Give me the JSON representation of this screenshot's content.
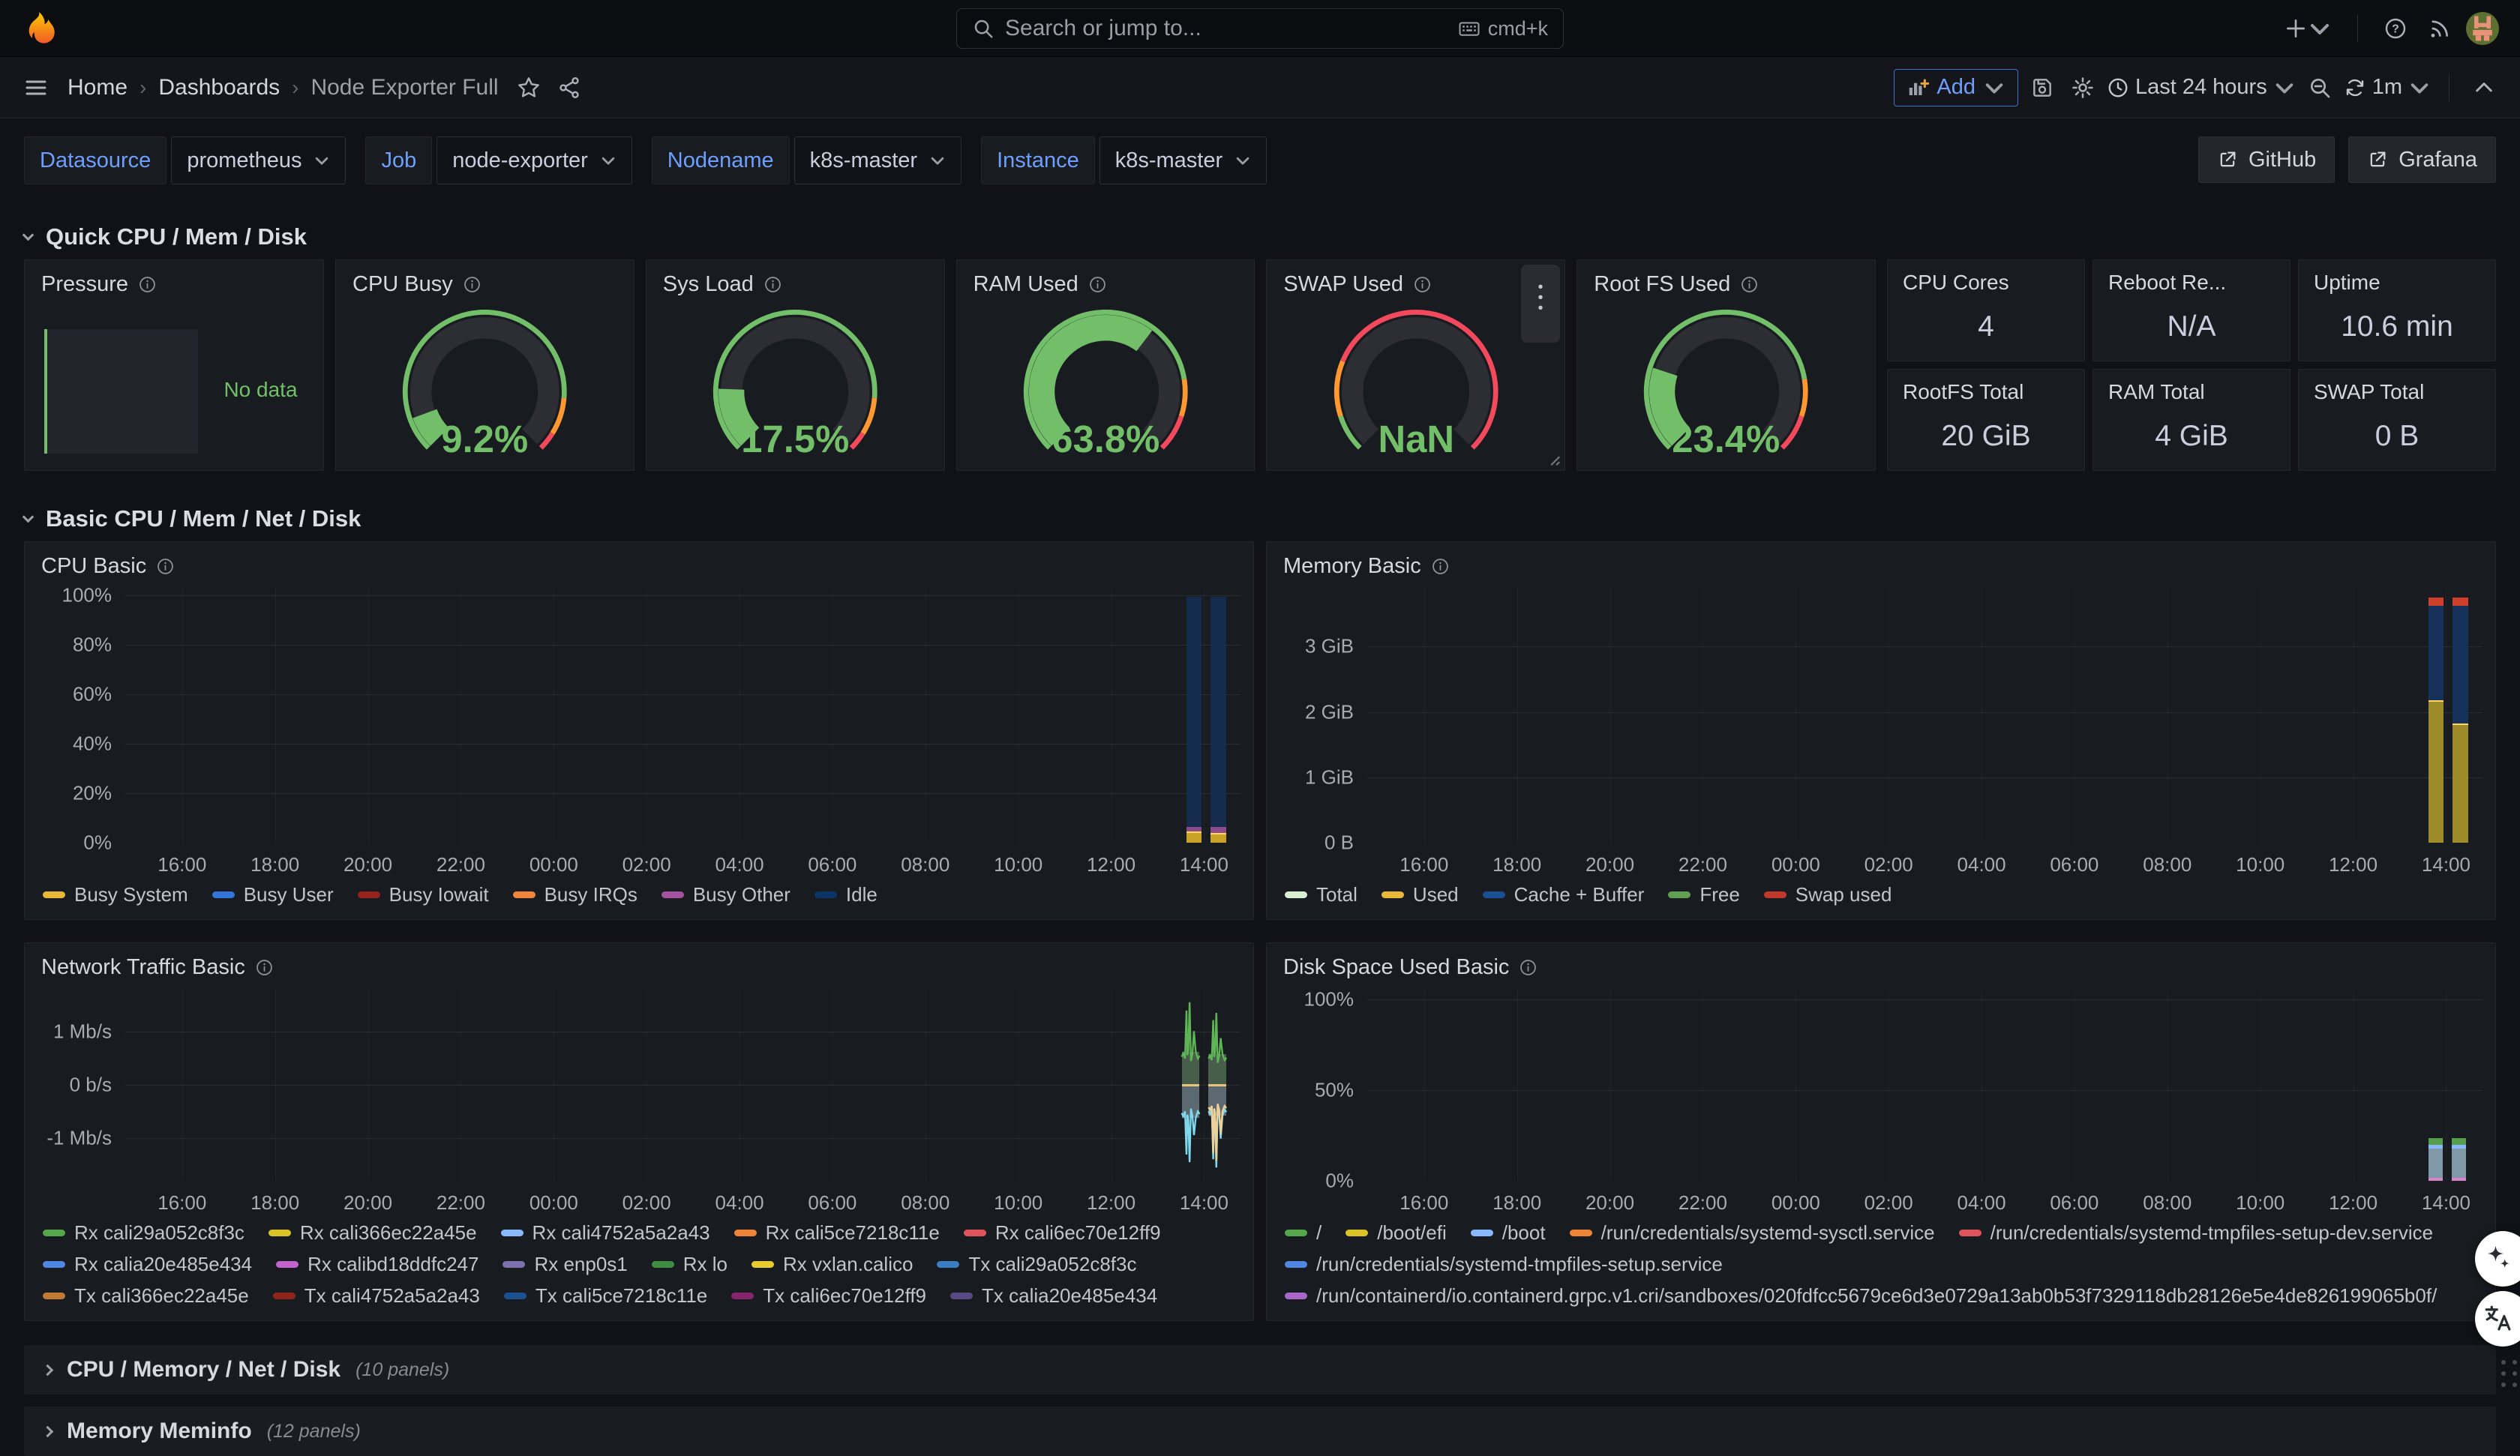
{
  "theme": {
    "page_bg": "#111217",
    "panel_bg": "#181b1f",
    "accent_blue": "#3d71d9",
    "link_blue": "#6e9fff",
    "green": "#73bf69",
    "orange": "#ff9830",
    "red": "#f2495c"
  },
  "topbar": {
    "search_placeholder": "Search or jump to...",
    "shortcut": "cmd+k"
  },
  "toolbar": {
    "breadcrumb": [
      "Home",
      "Dashboards",
      "Node Exporter Full"
    ],
    "add_label": "Add",
    "time_range": "Last 24 hours",
    "refresh_interval": "1m"
  },
  "variables": [
    {
      "label": "Datasource",
      "value": "prometheus"
    },
    {
      "label": "Job",
      "value": "node-exporter"
    },
    {
      "label": "Nodename",
      "value": "k8s-master"
    },
    {
      "label": "Instance",
      "value": "k8s-master"
    }
  ],
  "dash_links": [
    {
      "label": "GitHub"
    },
    {
      "label": "Grafana"
    }
  ],
  "rows": {
    "quick": "Quick CPU / Mem / Disk",
    "basic": "Basic CPU / Mem / Net / Disk",
    "collapsed": [
      {
        "title": "CPU / Memory / Net / Disk",
        "count": "(10 panels)"
      },
      {
        "title": "Memory Meminfo",
        "count": "(12 panels)"
      }
    ]
  },
  "pressure": {
    "title": "Pressure",
    "no_data": "No data"
  },
  "gauges": [
    {
      "title": "CPU Busy",
      "value": "9.2%",
      "pct": 9.2,
      "thresholds": [
        0.85,
        0.95
      ]
    },
    {
      "title": "Sys Load",
      "value": "17.5%",
      "pct": 17.5,
      "thresholds": [
        0.85,
        0.95
      ]
    },
    {
      "title": "RAM Used",
      "value": "63.8%",
      "pct": 63.8,
      "thresholds": [
        0.8,
        0.9
      ]
    },
    {
      "title": "SWAP Used",
      "value": "NaN",
      "pct": null,
      "thresholds": [
        0.1,
        0.25
      ],
      "menu": true
    },
    {
      "title": "Root FS Used",
      "value": "23.4%",
      "pct": 23.4,
      "thresholds": [
        0.8,
        0.9
      ]
    }
  ],
  "stats": [
    {
      "title": "CPU Cores",
      "value": "4"
    },
    {
      "title": "Reboot Re...",
      "value": "N/A"
    },
    {
      "title": "Uptime",
      "value": "10.6 min"
    },
    {
      "title": "RootFS Total",
      "value": "20 GiB"
    },
    {
      "title": "RAM Total",
      "value": "4 GiB"
    },
    {
      "title": "SWAP Total",
      "value": "0 B"
    }
  ],
  "chart_data": [
    {
      "id": "cpu_basic",
      "type": "stacked_bars",
      "title": "CPU Basic",
      "ylim": [
        0,
        103
      ],
      "y_ticks": [
        {
          "label": "100%",
          "v": 100
        },
        {
          "label": "80%",
          "v": 80
        },
        {
          "label": "60%",
          "v": 60
        },
        {
          "label": "40%",
          "v": 40
        },
        {
          "label": "20%",
          "v": 20
        },
        {
          "label": "0%",
          "v": 0
        }
      ],
      "x_ticks": [
        "16:00",
        "18:00",
        "20:00",
        "22:00",
        "00:00",
        "02:00",
        "04:00",
        "06:00",
        "08:00",
        "10:00",
        "12:00",
        "14:00"
      ],
      "legend_rows": [
        [
          {
            "label": "Busy System",
            "color": "#eab839"
          },
          {
            "label": "Busy User",
            "color": "#3274d9"
          },
          {
            "label": "Busy Iowait",
            "color": "#96241c"
          },
          {
            "label": "Busy IRQs",
            "color": "#ef843c"
          },
          {
            "label": "Busy Other",
            "color": "#a352a0"
          },
          {
            "label": "Idle",
            "color": "#0d3466"
          }
        ]
      ],
      "bars": [
        {
          "t0": 0.952,
          "t1": 0.966,
          "stack": [
            {
              "color": "#c9a227",
              "value": 4.5,
              "cap": "#ffd75e"
            },
            {
              "color": "#8d4a8d",
              "value": 2.0
            },
            {
              "color": "#152c4e",
              "value": 93.0
            }
          ]
        },
        {
          "t0": 0.974,
          "t1": 0.988,
          "stack": [
            {
              "color": "#c9a227",
              "value": 4.0,
              "cap": "#ffd75e"
            },
            {
              "color": "#8d4a8d",
              "value": 2.5
            },
            {
              "color": "#152c4e",
              "value": 93.0
            }
          ]
        }
      ]
    },
    {
      "id": "memory_basic",
      "type": "stacked_bars",
      "title": "Memory Basic",
      "ylim": [
        0,
        3.9
      ],
      "y_ticks": [
        {
          "label": "3 GiB",
          "v": 3
        },
        {
          "label": "2 GiB",
          "v": 2
        },
        {
          "label": "1 GiB",
          "v": 1
        },
        {
          "label": "0 B",
          "v": 0
        }
      ],
      "x_ticks": [
        "16:00",
        "18:00",
        "20:00",
        "22:00",
        "00:00",
        "02:00",
        "04:00",
        "06:00",
        "08:00",
        "10:00",
        "12:00",
        "14:00"
      ],
      "legend_rows": [
        [
          {
            "label": "Total",
            "color": "#d8efd1"
          },
          {
            "label": "Used",
            "color": "#eab839"
          },
          {
            "label": "Cache + Buffer",
            "color": "#1a4f91"
          },
          {
            "label": "Free",
            "color": "#629e51"
          },
          {
            "label": "Swap used",
            "color": "#c0392b"
          }
        ]
      ],
      "bars": [
        {
          "t0": 0.952,
          "t1": 0.966,
          "stack": [
            {
              "color": "#9c8b28",
              "value": 2.18,
              "cap": "#ffd75e"
            },
            {
              "color": "#16325a",
              "value": 1.44
            },
            {
              "color": "#cf3f2a",
              "value": 0.13
            }
          ]
        },
        {
          "t0": 0.974,
          "t1": 0.988,
          "stack": [
            {
              "color": "#9c8b28",
              "value": 1.82,
              "cap": "#ffd75e"
            },
            {
              "color": "#16325a",
              "value": 1.8
            },
            {
              "color": "#cf3f2a",
              "value": 0.13
            }
          ]
        }
      ]
    },
    {
      "id": "network_traffic_basic",
      "type": "spikes",
      "title": "Network Traffic Basic",
      "ylim": [
        -1.8,
        1.8
      ],
      "y_ticks": [
        {
          "label": "1 Mb/s",
          "v": 1
        },
        {
          "label": "0 b/s",
          "v": 0
        },
        {
          "label": "-1 Mb/s",
          "v": -1
        }
      ],
      "x_ticks": [
        "16:00",
        "18:00",
        "20:00",
        "22:00",
        "00:00",
        "02:00",
        "04:00",
        "06:00",
        "08:00",
        "10:00",
        "12:00",
        "14:00"
      ],
      "legend_rows": [
        [
          {
            "label": "Rx cali29a052c8f3c",
            "color": "#56a64b"
          },
          {
            "label": "Rx cali366ec22a45e",
            "color": "#d9c325"
          },
          {
            "label": "Rx cali4752a5a2a43",
            "color": "#8ab8ff"
          },
          {
            "label": "Rx cali5ce7218c11e",
            "color": "#ef8436"
          },
          {
            "label": "Rx cali6ec70e12ff9",
            "color": "#e0545c"
          }
        ],
        [
          {
            "label": "Rx calia20e485e434",
            "color": "#4f86e3"
          },
          {
            "label": "Rx calibd18ddfc247",
            "color": "#c364ce"
          },
          {
            "label": "Rx enp0s1",
            "color": "#7a71ad"
          },
          {
            "label": "Rx lo",
            "color": "#3f8c40"
          },
          {
            "label": "Rx vxlan.calico",
            "color": "#e8cb2e"
          },
          {
            "label": "Tx cali29a052c8f3c",
            "color": "#3a7dc0"
          }
        ],
        [
          {
            "label": "Tx cali366ec22a45e",
            "color": "#bf7a33"
          },
          {
            "label": "Tx cali4752a5a2a43",
            "color": "#8f241d"
          },
          {
            "label": "Tx cali5ce7218c11e",
            "color": "#1c508f"
          },
          {
            "label": "Tx cali6ec70e12ff9",
            "color": "#86256e"
          },
          {
            "label": "Tx calia20e485e434",
            "color": "#584a86"
          }
        ]
      ],
      "clusters": [
        {
          "t0": 0.948,
          "t1": 0.964,
          "rx_avg": 0.62,
          "rx_peak": 1.55,
          "tx_avg": -0.62,
          "tx_peak": -1.45
        },
        {
          "t0": 0.972,
          "t1": 0.988,
          "rx_avg": 0.58,
          "rx_peak": 1.35,
          "tx_avg": -0.58,
          "tx_peak": -1.55
        }
      ],
      "colors": {
        "rx_fill": "rgba(110,150,110,0.55)",
        "rx_line": "#5eb456",
        "tx_fill": "rgba(150,170,180,0.55)",
        "tx_line": "#7fd8ec",
        "tx_line2": "#ecd29a",
        "zero_line": "#e8c77a"
      }
    },
    {
      "id": "disk_space_used_basic",
      "type": "stacked_bars",
      "title": "Disk Space Used Basic",
      "ylim": [
        0,
        106
      ],
      "y_ticks": [
        {
          "label": "100%",
          "v": 100
        },
        {
          "label": "50%",
          "v": 50
        },
        {
          "label": "0%",
          "v": 0
        }
      ],
      "x_ticks": [
        "16:00",
        "18:00",
        "20:00",
        "22:00",
        "00:00",
        "02:00",
        "04:00",
        "06:00",
        "08:00",
        "10:00",
        "12:00",
        "14:00"
      ],
      "legend_rows": [
        [
          {
            "label": "/",
            "color": "#56a64b"
          },
          {
            "label": "/boot/efi",
            "color": "#d9c325"
          },
          {
            "label": "/boot",
            "color": "#8ab8ff"
          },
          {
            "label": "/run/credentials/systemd-sysctl.service",
            "color": "#ef8436"
          },
          {
            "label": "/run/credentials/systemd-tmpfiles-setup-dev.service",
            "color": "#e0545c"
          }
        ],
        [
          {
            "label": "/run/credentials/systemd-tmpfiles-setup.service",
            "color": "#4f86e3"
          }
        ],
        [
          {
            "label": "/run/containerd/io.containerd.grpc.v1.cri/sandboxes/020fdfcc5679ce6d3e0729a13ab0b53f7329118db28126e5e4de826199065b0f/",
            "color": "#ab66c9"
          }
        ]
      ],
      "bars": [
        {
          "t0": 0.952,
          "t1": 0.965,
          "stack": [
            {
              "color": "#d882c8",
              "value": 1.6
            },
            {
              "color": "#7f99a9",
              "value": 16.4
            },
            {
              "color": "#8ab8ff",
              "value": 1.8
            },
            {
              "color": "#569e4b",
              "value": 3.6
            }
          ]
        },
        {
          "t0": 0.973,
          "t1": 0.986,
          "stack": [
            {
              "color": "#d882c8",
              "value": 1.6
            },
            {
              "color": "#7f99a9",
              "value": 16.4
            },
            {
              "color": "#8ab8ff",
              "value": 1.8
            },
            {
              "color": "#569e4b",
              "value": 3.6
            }
          ]
        }
      ]
    }
  ]
}
